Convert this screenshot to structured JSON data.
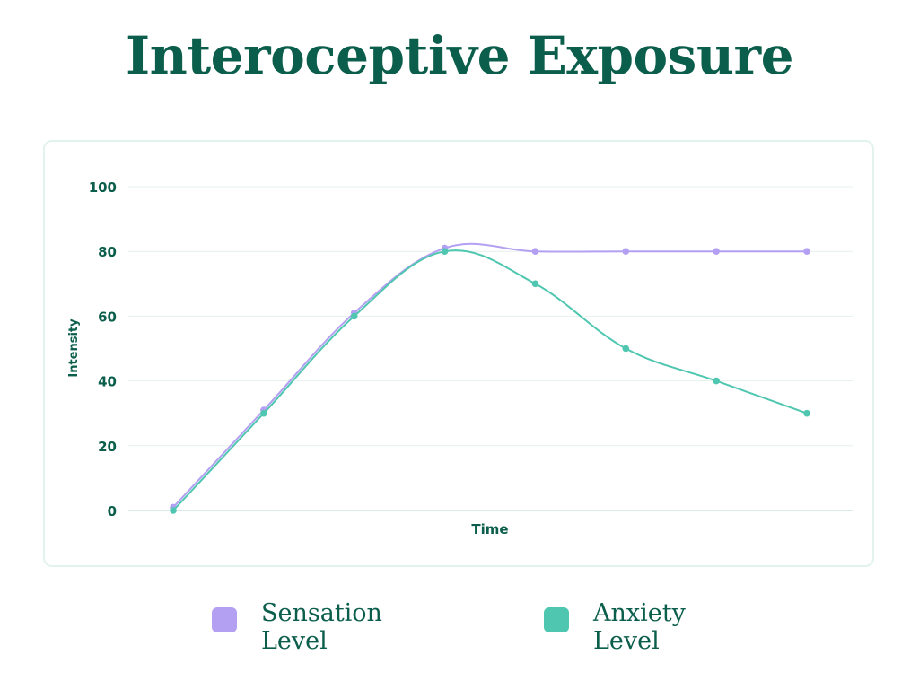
{
  "title": "Interoceptive Exposure",
  "colors": {
    "title": "#0b5e4b",
    "axis_text": "#0b5e4b",
    "grid": "#e6f0ed",
    "card_border": "#e2f2ee",
    "sensation": "#b4a0f2",
    "anxiety": "#4fc7b0"
  },
  "chart_data": {
    "type": "line",
    "xlabel": "Time",
    "ylabel": "Intensity",
    "ylim": [
      0,
      100
    ],
    "yticks": [
      0,
      20,
      40,
      60,
      80,
      100
    ],
    "x": [
      1,
      2,
      3,
      4,
      5,
      6,
      7,
      8
    ],
    "grid": true,
    "legend_position": "bottom",
    "series": [
      {
        "name": "Sensation Level",
        "color": "#b4a0f2",
        "values": [
          1,
          31,
          61,
          81,
          80,
          80,
          80,
          80
        ]
      },
      {
        "name": "Anxiety Level",
        "color": "#4fc7b0",
        "values": [
          0,
          30,
          60,
          80,
          70,
          50,
          40,
          30
        ]
      }
    ]
  },
  "legend": {
    "items": [
      {
        "label": "Sensation Level",
        "color": "#b4a0f2"
      },
      {
        "label": "Anxiety Level",
        "color": "#4fc7b0"
      }
    ]
  }
}
